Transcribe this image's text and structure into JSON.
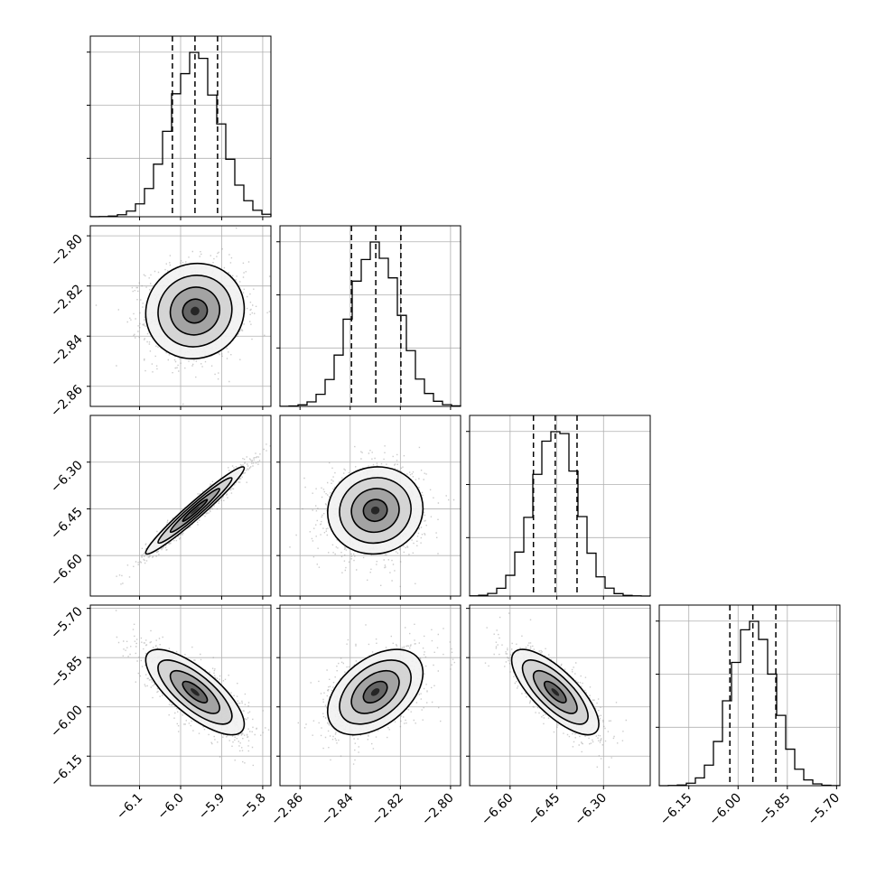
{
  "chart_data": {
    "type": "corner",
    "parameters": [
      {
        "index": 0,
        "range": [
          -6.22,
          -5.78
        ],
        "ticks": [
          "-6.1",
          "-6.0",
          "-5.9",
          "-5.8"
        ],
        "tick_values": [
          -6.1,
          -6.0,
          -5.9,
          -5.8
        ],
        "mean": -5.965,
        "std": 0.06,
        "quantiles": [
          -6.02,
          -5.965,
          -5.91
        ]
      },
      {
        "index": 1,
        "range": [
          -2.868,
          -2.796
        ],
        "ticks": [
          "-2.80",
          "-2.82",
          "-2.84",
          "-2.86"
        ],
        "tick_values": [
          -2.8,
          -2.82,
          -2.84,
          -2.86
        ],
        "xticks": [
          "-2.86",
          "-2.84",
          "-2.82",
          "-2.80"
        ],
        "xtick_values": [
          -2.86,
          -2.84,
          -2.82,
          -2.8
        ],
        "mean": -2.83,
        "std": 0.0095,
        "quantiles": [
          -2.8395,
          -2.8298,
          -2.8198
        ]
      },
      {
        "index": 2,
        "range": [
          -6.73,
          -6.15
        ],
        "ticks": [
          "-6.30",
          "-6.45",
          "-6.60"
        ],
        "tick_values": [
          -6.3,
          -6.45,
          -6.6
        ],
        "xticks": [
          "-6.60",
          "-6.45",
          "-6.30"
        ],
        "xtick_values": [
          -6.6,
          -6.45,
          -6.3
        ],
        "mean": -6.455,
        "std": 0.07,
        "quantiles": [
          -6.525,
          -6.455,
          -6.385
        ]
      },
      {
        "index": 3,
        "range": [
          -6.24,
          -5.69
        ],
        "ticks": [
          "-5.70",
          "-5.85",
          "-6.00",
          "-6.15"
        ],
        "tick_values": [
          -5.7,
          -5.85,
          -6.0,
          -6.15
        ],
        "xticks": [
          "-6.15",
          "-6.00",
          "-5.85",
          "-5.70"
        ],
        "xtick_values": [
          -6.15,
          -6.0,
          -5.85,
          -5.7
        ],
        "mean": -5.955,
        "std": 0.065,
        "quantiles": [
          -6.025,
          -5.955,
          -5.885
        ]
      }
    ],
    "correlations": [
      [
        1,
        0.05,
        0.97,
        -0.75
      ],
      [
        0.05,
        1,
        0.05,
        0.45
      ],
      [
        0.97,
        0.05,
        1,
        -0.75
      ],
      [
        -0.75,
        0.45,
        -0.75,
        1
      ]
    ],
    "histogram_bins": 20,
    "quantile_line_style": "dashed",
    "contour_levels": [
      0.5,
      1.0,
      1.5,
      2.0
    ],
    "grid": true
  }
}
